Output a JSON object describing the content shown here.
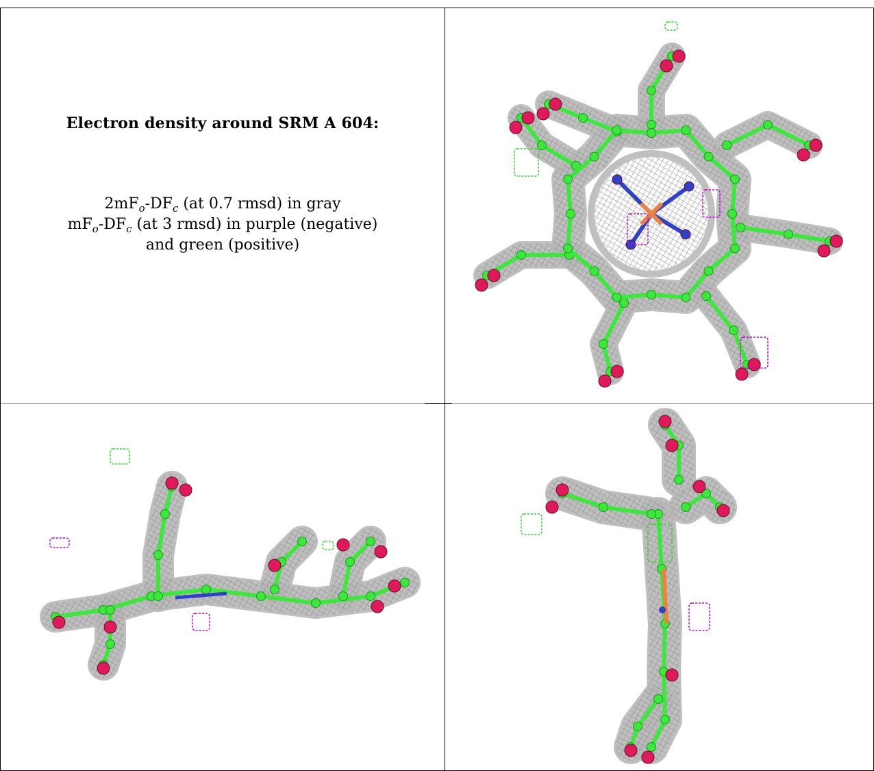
{
  "caption": {
    "title": "Electron density around SRM A 604:",
    "line1": {
      "pre": "2mF",
      "sub_o": "o",
      "mid": "-DF",
      "sub_c": "c",
      "post": " (at 0.7 rmsd) in gray"
    },
    "line2": {
      "pre": "mF",
      "sub_o": "o",
      "mid": "-DF",
      "sub_c": "c",
      "post": " (at 3 rmsd) in purple (negative)"
    },
    "line3": "and green (positive)"
  },
  "colors": {
    "mesh_gray": "#8a8a8a",
    "carbon_green": "#3be83b",
    "oxygen_red": "#e0195a",
    "nitrogen_blue": "#3040c8",
    "iron_orange": "#f08040",
    "negative_purple": "#c000d8",
    "positive_green": "#28d828"
  },
  "panels": [
    {
      "view": "top"
    },
    {
      "view": "side"
    },
    {
      "view": "end"
    }
  ]
}
